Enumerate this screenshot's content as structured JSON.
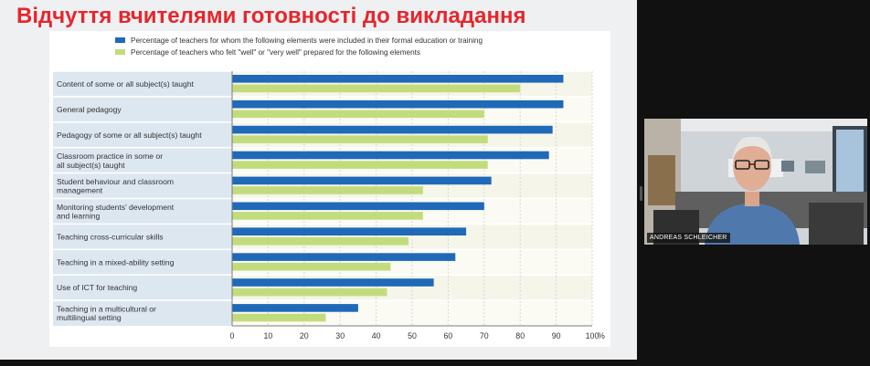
{
  "slide": {
    "title": "Відчуття вчителями готовності до викладання"
  },
  "video_tile": {
    "participant_name": "ANDREAS SCHLEICHER"
  },
  "chart_data": {
    "type": "bar",
    "orientation": "horizontal",
    "categories": [
      [
        "Content of some or all subject(s) taught"
      ],
      [
        "General pedagogy"
      ],
      [
        "Pedagogy of some or all subject(s) taught"
      ],
      [
        "Classroom practice in some or",
        "all subject(s) taught"
      ],
      [
        "Student behaviour and classroom",
        "management"
      ],
      [
        "Monitoring students’ development",
        "and learning"
      ],
      [
        "Teaching cross-curricular skills"
      ],
      [
        "Teaching in a mixed-ability setting"
      ],
      [
        "Use of ICT for teaching"
      ],
      [
        "Teaching in a multicultural or",
        "multilingual setting"
      ]
    ],
    "series": [
      {
        "name": "Percentage of teachers for whom the following elements were included in their formal education or training",
        "color": "#1f69b8",
        "values": [
          92,
          92,
          89,
          88,
          72,
          70,
          65,
          62,
          56,
          35
        ]
      },
      {
        "name": "Percentage of teachers who felt \"well\" or \"very well\" prepared for the following elements",
        "color": "#c2dc7d",
        "values": [
          80,
          70,
          71,
          71,
          53,
          53,
          49,
          44,
          43,
          26
        ]
      }
    ],
    "xlim": [
      0,
      100
    ],
    "x_ticks": [
      "0",
      "10",
      "20",
      "30",
      "40",
      "50",
      "60",
      "70",
      "80",
      "90",
      "100"
    ],
    "x_unit": "%",
    "grid": true,
    "legend_position": "top"
  }
}
